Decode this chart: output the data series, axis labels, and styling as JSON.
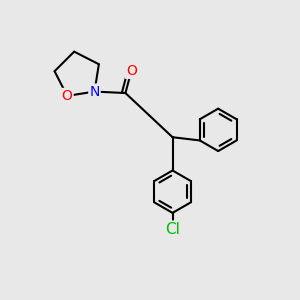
{
  "bg_color": "#e8e8e8",
  "bond_color": "#000000",
  "bond_width": 1.5,
  "atom_colors": {
    "O": "#ff0000",
    "N": "#0000ff",
    "Cl": "#00bb00",
    "C": "#000000"
  },
  "font_size": 10,
  "ring_r": 0.72,
  "ph_r": 0.72
}
